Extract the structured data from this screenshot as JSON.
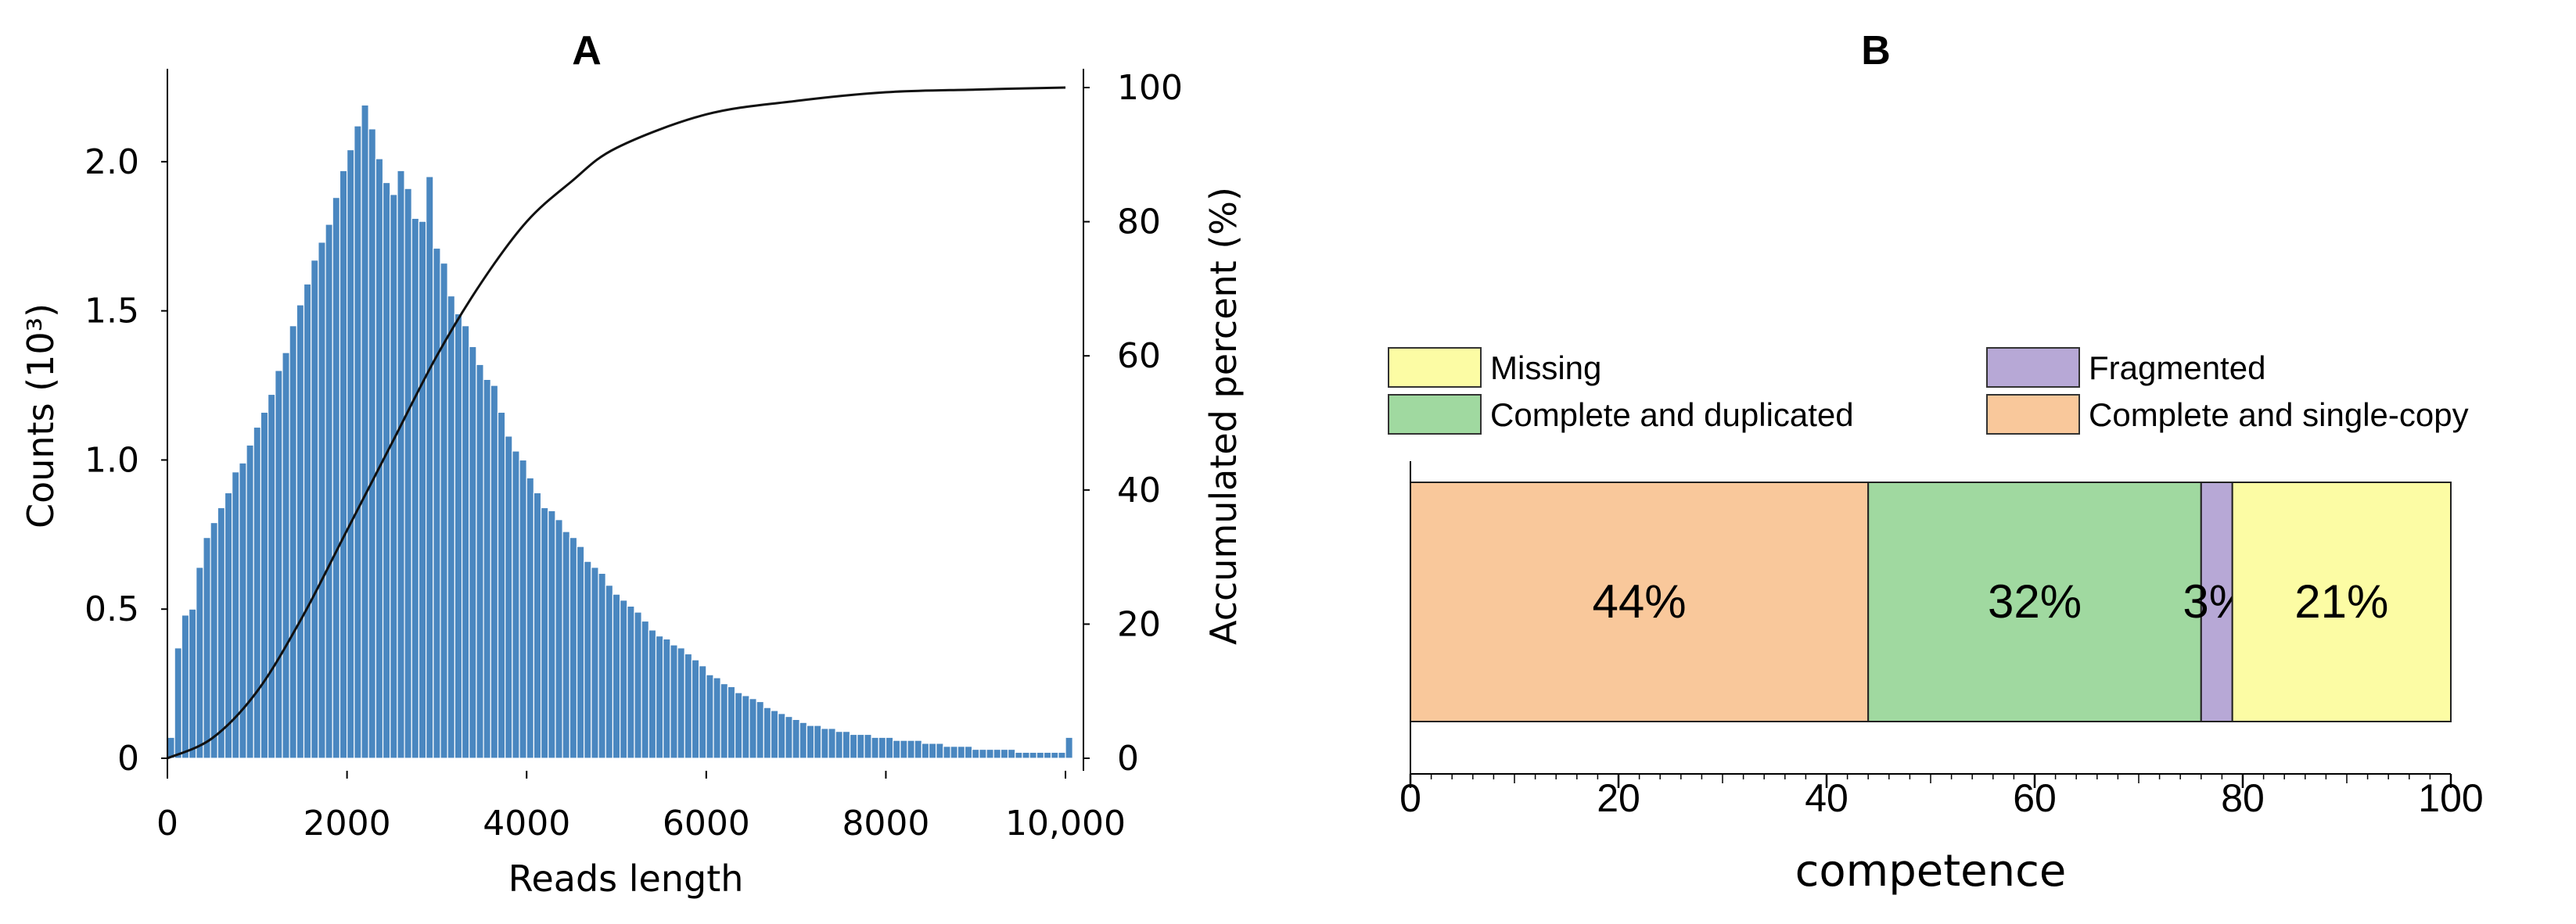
{
  "chart_data": [
    {
      "type": "bar",
      "panel_label": "A",
      "xlabel": "Reads length",
      "ylabel_left": "Counts (10³)",
      "ylabel_right": "Accumulated percent  (%)",
      "x_ticks": [
        "0",
        "2000",
        "4000",
        "6000",
        "8000",
        "10,000"
      ],
      "y_left_ticks": [
        "0",
        "0.5",
        "1.0",
        "1.5",
        "2.0"
      ],
      "y_right_ticks": [
        "0",
        "20",
        "40",
        "60",
        "80",
        "100"
      ],
      "xlim": [
        0,
        10200
      ],
      "ylim_left": [
        0,
        2.28
      ],
      "ylim_right": [
        0,
        100
      ],
      "bin_width": 80,
      "bin_start": 0,
      "counts_thousands": [
        0.07,
        0.37,
        0.48,
        0.5,
        0.64,
        0.74,
        0.79,
        0.84,
        0.89,
        0.96,
        0.99,
        1.05,
        1.11,
        1.16,
        1.22,
        1.3,
        1.36,
        1.45,
        1.52,
        1.59,
        1.67,
        1.73,
        1.79,
        1.88,
        1.97,
        2.04,
        2.12,
        2.19,
        2.11,
        2.01,
        1.93,
        1.89,
        1.97,
        1.91,
        1.81,
        1.8,
        1.95,
        1.71,
        1.66,
        1.55,
        1.49,
        1.45,
        1.38,
        1.32,
        1.27,
        1.25,
        1.16,
        1.08,
        1.03,
        1.0,
        0.94,
        0.89,
        0.84,
        0.83,
        0.8,
        0.76,
        0.74,
        0.71,
        0.66,
        0.64,
        0.62,
        0.58,
        0.55,
        0.53,
        0.51,
        0.49,
        0.46,
        0.43,
        0.41,
        0.4,
        0.38,
        0.37,
        0.35,
        0.33,
        0.31,
        0.28,
        0.27,
        0.25,
        0.24,
        0.22,
        0.21,
        0.2,
        0.19,
        0.17,
        0.16,
        0.15,
        0.14,
        0.13,
        0.12,
        0.11,
        0.11,
        0.1,
        0.1,
        0.09,
        0.09,
        0.08,
        0.08,
        0.08,
        0.07,
        0.07,
        0.07,
        0.06,
        0.06,
        0.06,
        0.06,
        0.05,
        0.05,
        0.05,
        0.04,
        0.04,
        0.04,
        0.04,
        0.03,
        0.03,
        0.03,
        0.03,
        0.03,
        0.03,
        0.02,
        0.02,
        0.02,
        0.02,
        0.02,
        0.02,
        0.02,
        0.07
      ],
      "cumulative_curve": {
        "x": [
          0,
          500,
          1000,
          1500,
          2000,
          2500,
          3000,
          3500,
          4000,
          4500,
          5000,
          6000,
          7000,
          8000,
          9000,
          10000
        ],
        "percent": [
          0,
          3,
          10,
          21,
          34,
          47,
          60,
          71,
          80,
          86,
          91,
          96,
          98,
          99.3,
          99.7,
          100
        ]
      },
      "colors": {
        "bar": "#4a87c0",
        "bar_edge": "#ffffff",
        "curve": "#111111"
      }
    },
    {
      "type": "bar",
      "orientation": "horizontal",
      "stacked": true,
      "panel_label": "B",
      "xlabel": "competence",
      "x_ticks": [
        "0",
        "20",
        "40",
        "60",
        "80",
        "100"
      ],
      "xlim": [
        0,
        100
      ],
      "series": [
        {
          "name": "Complete and single-copy",
          "value": 44,
          "label": "44%",
          "color": "#f9c89b"
        },
        {
          "name": "Complete and duplicated",
          "value": 32,
          "label": "32%",
          "color": "#a0d9a0"
        },
        {
          "name": "Fragmented",
          "value": 3,
          "label": "3%",
          "color": "#b7a8d6"
        },
        {
          "name": "Missing",
          "value": 21,
          "label": "21%",
          "color": "#fcfca4"
        }
      ],
      "legend_order": [
        "Missing",
        "Fragmented",
        "Complete and duplicated",
        "Complete and single-copy"
      ],
      "legend_placement": "top"
    }
  ]
}
